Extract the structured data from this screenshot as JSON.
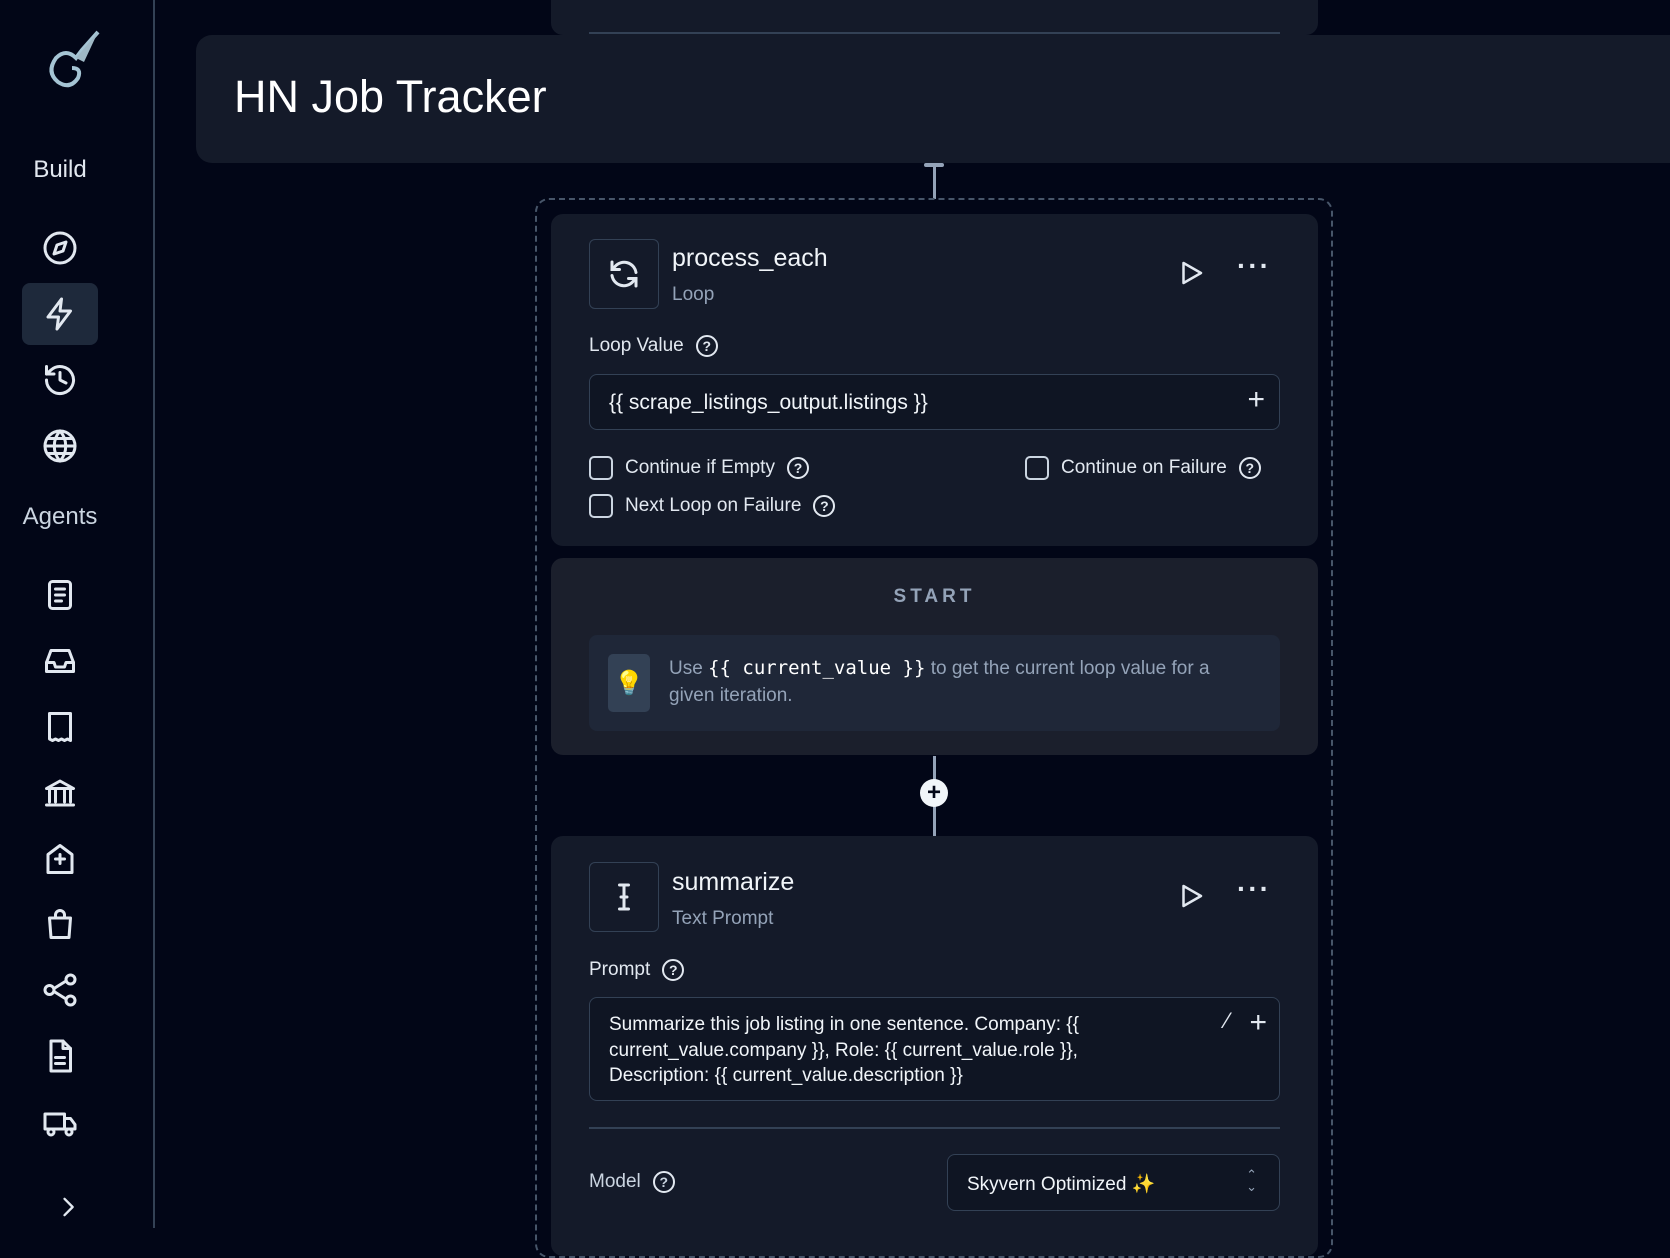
{
  "sidebar": {
    "build_label": "Build",
    "agents_label": "Agents"
  },
  "header": {
    "title": "HN Job Tracker"
  },
  "loop_block": {
    "title": "process_each",
    "type": "Loop",
    "loop_value_label": "Loop Value",
    "loop_value": "{{ scrape_listings_output.listings }}",
    "continue_if_empty": "Continue if Empty",
    "continue_on_failure": "Continue on Failure",
    "next_loop_on_failure": "Next Loop on Failure"
  },
  "start": {
    "label": "START",
    "tip_prefix": "Use",
    "tip_code": "{{ current_value }}",
    "tip_suffix": "to get the current loop value for a given iteration."
  },
  "text_prompt_block": {
    "title": "summarize",
    "type": "Text Prompt",
    "prompt_label": "Prompt",
    "prompt": "Summarize this job listing in one sentence. Company: {{ current_value.company }}, Role: {{ current_value.role }}, Description: {{ current_value.description }}",
    "model_label": "Model",
    "model_value": "Skyvern Optimized ✨"
  }
}
